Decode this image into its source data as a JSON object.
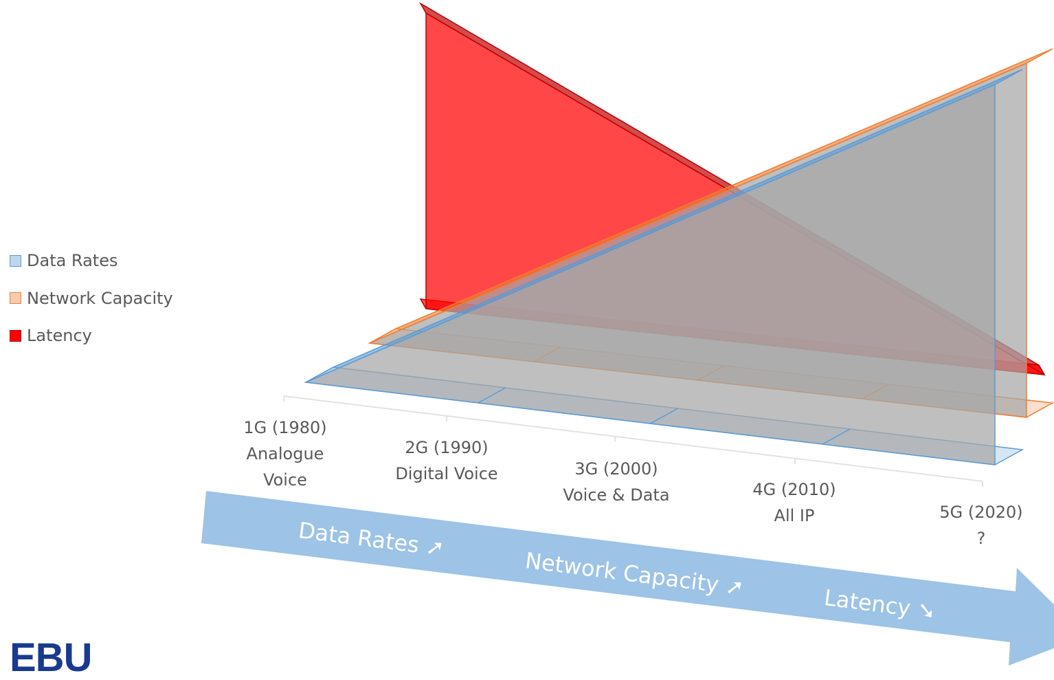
{
  "chart_data": {
    "type": "area",
    "categories": [
      {
        "label": "1G (1980)",
        "lines": [
          "1G (1980)",
          "Analogue",
          "Voice"
        ]
      },
      {
        "label": "2G (1990)",
        "lines": [
          "2G (1990)",
          "Digital Voice"
        ]
      },
      {
        "label": "3G (2000)",
        "lines": [
          "3G (2000)",
          "Voice & Data"
        ]
      },
      {
        "label": "4G (2010)",
        "lines": [
          "4G (2010)",
          "All IP"
        ]
      },
      {
        "label": "5G (2020)",
        "lines": [
          "5G (2020)",
          "?"
        ]
      }
    ],
    "series": [
      {
        "name": "Data Rates",
        "values": [
          0,
          25,
          50,
          75,
          100
        ],
        "fill": "#bdd7ee",
        "edge": "#5b9bd5"
      },
      {
        "name": "Network Capacity",
        "values": [
          0,
          25,
          50,
          75,
          100
        ],
        "fill": "#f8cbad",
        "edge": "#ed7d31"
      },
      {
        "name": "Latency",
        "values": [
          100,
          75,
          50,
          25,
          0
        ],
        "fill": "#ff0000",
        "edge": "#c00000"
      }
    ],
    "view": "3d",
    "grid": false,
    "legend_position": "left"
  },
  "arrow": {
    "color": "#9dc3e6",
    "labels": [
      {
        "text": "Data Rates",
        "symbol": "➚"
      },
      {
        "text": "Network Capacity",
        "symbol": "➚"
      },
      {
        "text": "Latency",
        "symbol": "➘"
      }
    ]
  },
  "logo": {
    "text": "EBU",
    "color": "#1a3a8f"
  }
}
